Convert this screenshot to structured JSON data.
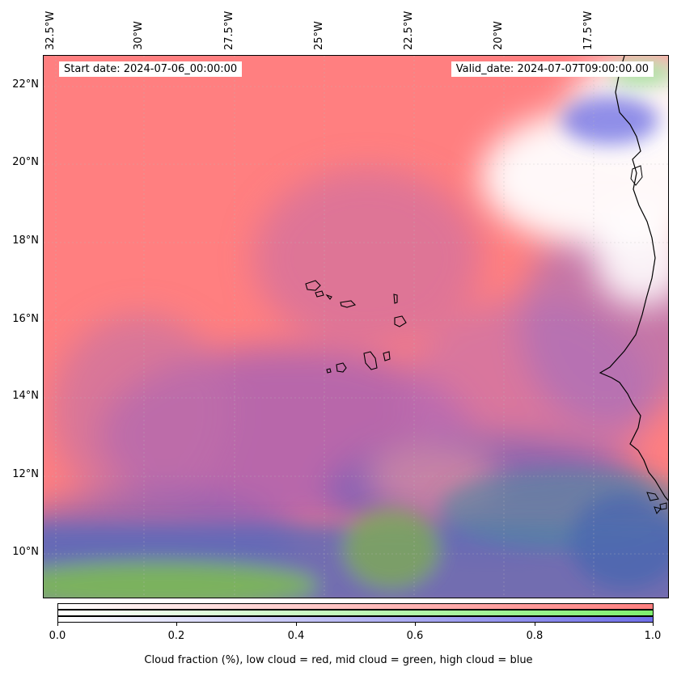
{
  "header": {
    "start_label": "Start date: 2024-07-06_00:00:00",
    "valid_label": "Valid_date: 2024-07-07T09:00:00.00"
  },
  "map": {
    "longitude_labels": [
      "32.5°W",
      "30°W",
      "27.5°W",
      "25°W",
      "22.5°W",
      "20°W",
      "17.5°W"
    ],
    "latitude_labels": [
      "22°N",
      "20°N",
      "18°N",
      "16°N",
      "14°N",
      "12°N",
      "10°N"
    ],
    "colors": {
      "low_cloud": "#ff7f7f",
      "mid_cloud": "#7fdf5f",
      "high_cloud": "#5f5fdf",
      "clear": "#ffffff"
    }
  },
  "colorbar": {
    "tick_labels": [
      "0.0",
      "0.2",
      "0.4",
      "0.6",
      "0.8",
      "1.0"
    ],
    "caption": "Cloud fraction (%), low cloud = red, mid cloud = green, high cloud = blue"
  }
}
